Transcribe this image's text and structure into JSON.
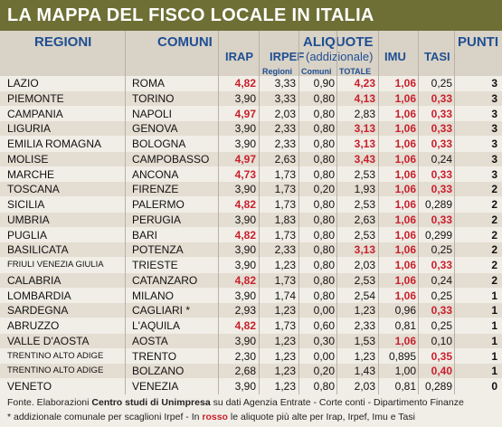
{
  "title": "LA MAPPA DEL FISCO LOCALE IN ITALIA",
  "header": {
    "regioni": "REGIONI",
    "comuni": "COMUNI",
    "aliquote": "ALIQUOTE",
    "punti": "PUNTI",
    "irap": "IRAP",
    "irpef": "IRPEF",
    "irpef_note": "(addizionale)",
    "imu": "IMU",
    "tasi": "TASI",
    "regioni_sub": "Regioni",
    "comuni_sub": "Comuni",
    "totale": "TOTALE"
  },
  "rows": [
    {
      "regione": "LAZIO",
      "comune": "ROMA",
      "irap": "4,82",
      "irap_red": true,
      "reg": "3,33",
      "com": "0,90",
      "tot": "4,23",
      "tot_red": true,
      "imu": "1,06",
      "imu_red": true,
      "tasi": "0,25",
      "tasi_red": false,
      "punti": "3"
    },
    {
      "regione": "PIEMONTE",
      "comune": "TORINO",
      "irap": "3,90",
      "irap_red": false,
      "reg": "3,33",
      "com": "0,80",
      "tot": "4,13",
      "tot_red": true,
      "imu": "1,06",
      "imu_red": true,
      "tasi": "0,33",
      "tasi_red": true,
      "punti": "3"
    },
    {
      "regione": "CAMPANIA",
      "comune": "NAPOLI",
      "irap": "4,97",
      "irap_red": true,
      "reg": "2,03",
      "com": "0,80",
      "tot": "2,83",
      "tot_red": false,
      "imu": "1,06",
      "imu_red": true,
      "tasi": "0,33",
      "tasi_red": true,
      "punti": "3"
    },
    {
      "regione": "LIGURIA",
      "comune": "GENOVA",
      "irap": "3,90",
      "irap_red": false,
      "reg": "2,33",
      "com": "0,80",
      "tot": "3,13",
      "tot_red": true,
      "imu": "1,06",
      "imu_red": true,
      "tasi": "0,33",
      "tasi_red": true,
      "punti": "3"
    },
    {
      "regione": "EMILIA ROMAGNA",
      "comune": "BOLOGNA",
      "irap": "3,90",
      "irap_red": false,
      "reg": "2,33",
      "com": "0,80",
      "tot": "3,13",
      "tot_red": true,
      "imu": "1,06",
      "imu_red": true,
      "tasi": "0,33",
      "tasi_red": true,
      "punti": "3"
    },
    {
      "regione": "MOLISE",
      "comune": "CAMPOBASSO",
      "irap": "4,97",
      "irap_red": true,
      "reg": "2,63",
      "com": "0,80",
      "tot": "3,43",
      "tot_red": true,
      "imu": "1,06",
      "imu_red": true,
      "tasi": "0,24",
      "tasi_red": false,
      "punti": "3"
    },
    {
      "regione": "MARCHE",
      "comune": "ANCONA",
      "irap": "4,73",
      "irap_red": true,
      "reg": "1,73",
      "com": "0,80",
      "tot": "2,53",
      "tot_red": false,
      "imu": "1,06",
      "imu_red": true,
      "tasi": "0,33",
      "tasi_red": true,
      "punti": "3"
    },
    {
      "regione": "TOSCANA",
      "comune": "FIRENZE",
      "irap": "3,90",
      "irap_red": false,
      "reg": "1,73",
      "com": "0,20",
      "tot": "1,93",
      "tot_red": false,
      "imu": "1,06",
      "imu_red": true,
      "tasi": "0,33",
      "tasi_red": true,
      "punti": "2"
    },
    {
      "regione": "SICILIA",
      "comune": "PALERMO",
      "irap": "4,82",
      "irap_red": true,
      "reg": "1,73",
      "com": "0,80",
      "tot": "2,53",
      "tot_red": false,
      "imu": "1,06",
      "imu_red": true,
      "tasi": "0,289",
      "tasi_red": false,
      "punti": "2"
    },
    {
      "regione": "UMBRIA",
      "comune": "PERUGIA",
      "irap": "3,90",
      "irap_red": false,
      "reg": "1,83",
      "com": "0,80",
      "tot": "2,63",
      "tot_red": false,
      "imu": "1,06",
      "imu_red": true,
      "tasi": "0,33",
      "tasi_red": true,
      "punti": "2"
    },
    {
      "regione": "PUGLIA",
      "comune": "BARI",
      "irap": "4,82",
      "irap_red": true,
      "reg": "1,73",
      "com": "0,80",
      "tot": "2,53",
      "tot_red": false,
      "imu": "1,06",
      "imu_red": true,
      "tasi": "0,299",
      "tasi_red": false,
      "punti": "2"
    },
    {
      "regione": "BASILICATA",
      "comune": "POTENZA",
      "irap": "3,90",
      "irap_red": false,
      "reg": "2,33",
      "com": "0,80",
      "tot": "3,13",
      "tot_red": true,
      "imu": "1,06",
      "imu_red": true,
      "tasi": "0,25",
      "tasi_red": false,
      "punti": "2"
    },
    {
      "regione": "FRIULI VENEZIA GIULIA",
      "comune": "TRIESTE",
      "irap": "3,90",
      "irap_red": false,
      "reg": "1,23",
      "com": "0,80",
      "tot": "2,03",
      "tot_red": false,
      "imu": "1,06",
      "imu_red": true,
      "tasi": "0,33",
      "tasi_red": true,
      "punti": "2",
      "small": true
    },
    {
      "regione": "CALABRIA",
      "comune": "CATANZARO",
      "irap": "4,82",
      "irap_red": true,
      "reg": "1,73",
      "com": "0,80",
      "tot": "2,53",
      "tot_red": false,
      "imu": "1,06",
      "imu_red": true,
      "tasi": "0,24",
      "tasi_red": false,
      "punti": "2"
    },
    {
      "regione": "LOMBARDIA",
      "comune": "MILANO",
      "irap": "3,90",
      "irap_red": false,
      "reg": "1,74",
      "com": "0,80",
      "tot": "2,54",
      "tot_red": false,
      "imu": "1,06",
      "imu_red": true,
      "tasi": "0,25",
      "tasi_red": false,
      "punti": "1"
    },
    {
      "regione": "SARDEGNA",
      "comune": "CAGLIARI *",
      "irap": "2,93",
      "irap_red": false,
      "reg": "1,23",
      "com": "0,00",
      "tot": "1,23",
      "tot_red": false,
      "imu": "0,96",
      "imu_red": false,
      "tasi": "0,33",
      "tasi_red": true,
      "punti": "1"
    },
    {
      "regione": "ABRUZZO",
      "comune": "L'AQUILA",
      "irap": "4,82",
      "irap_red": true,
      "reg": "1,73",
      "com": "0,60",
      "tot": "2,33",
      "tot_red": false,
      "imu": "0,81",
      "imu_red": false,
      "tasi": "0,25",
      "tasi_red": false,
      "punti": "1"
    },
    {
      "regione": "VALLE D'AOSTA",
      "comune": "AOSTA",
      "irap": "3,90",
      "irap_red": false,
      "reg": "1,23",
      "com": "0,30",
      "tot": "1,53",
      "tot_red": false,
      "imu": "1,06",
      "imu_red": true,
      "tasi": "0,10",
      "tasi_red": false,
      "punti": "1"
    },
    {
      "regione": "TRENTINO ALTO ADIGE",
      "comune": "TRENTO",
      "irap": "2,30",
      "irap_red": false,
      "reg": "1,23",
      "com": "0,00",
      "tot": "1,23",
      "tot_red": false,
      "imu": "0,895",
      "imu_red": false,
      "tasi": "0,35",
      "tasi_red": true,
      "punti": "1",
      "small": true
    },
    {
      "regione": "TRENTINO ALTO ADIGE",
      "comune": "BOLZANO",
      "irap": "2,68",
      "irap_red": false,
      "reg": "1,23",
      "com": "0,20",
      "tot": "1,43",
      "tot_red": false,
      "imu": "1,00",
      "imu_red": false,
      "tasi": "0,40",
      "tasi_red": true,
      "punti": "1",
      "small": true
    },
    {
      "regione": "VENETO",
      "comune": "VENEZIA",
      "irap": "3,90",
      "irap_red": false,
      "reg": "1,23",
      "com": "0,80",
      "tot": "2,03",
      "tot_red": false,
      "imu": "0,81",
      "imu_red": false,
      "tasi": "0,289",
      "tasi_red": false,
      "punti": "0"
    }
  ],
  "footer": {
    "line1_a": "Fonte. Elaborazioni ",
    "line1_b": "Centro studi di Unimpresa",
    "line1_c": " su dati Agenzia Entrate - Corte conti - Dipartimento Finanze",
    "line2_a": "* addizionale comunale per scaglioni Irpef - In ",
    "line2_b": "rosso",
    "line2_c": " le aliquote più alte per Irap, Irpef, Imu e Tasi"
  },
  "colors": {
    "title_bg": "#6e6f35",
    "header_bg": "#d9d2c6",
    "header_text": "#1f4f93",
    "highlight": "#c8202d",
    "row_alt": "#e4ddd2",
    "row_bg": "#f1eee7"
  }
}
